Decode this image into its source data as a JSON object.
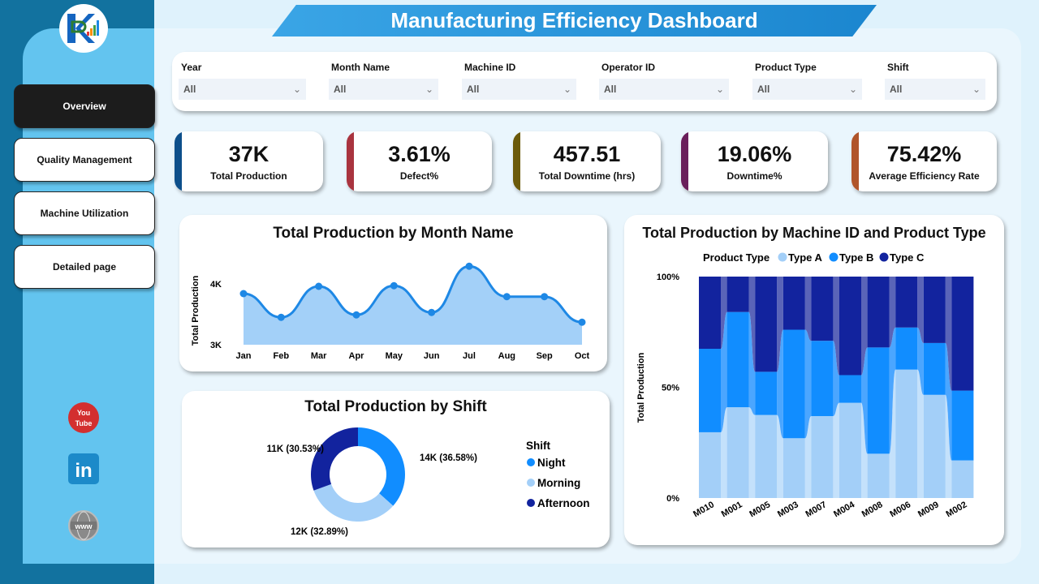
{
  "header": {
    "title": "Manufacturing Efficiency Dashboard",
    "logo_text": "KPI"
  },
  "nav": [
    {
      "label": "Overview",
      "active": true
    },
    {
      "label": "Quality Management"
    },
    {
      "label": "Machine Utilization"
    },
    {
      "label": "Detailed page"
    }
  ],
  "social": [
    {
      "icon": "youtube-icon",
      "label": "You Tube"
    },
    {
      "icon": "linkedin-icon",
      "label": "in"
    },
    {
      "icon": "globe-icon",
      "label": "www"
    }
  ],
  "filters": [
    {
      "label": "Year",
      "value": "All"
    },
    {
      "label": "Month Name",
      "value": "All"
    },
    {
      "label": "Machine ID",
      "value": "All"
    },
    {
      "label": "Operator ID",
      "value": "All"
    },
    {
      "label": "Product Type",
      "value": "All"
    },
    {
      "label": "Shift",
      "value": "All"
    }
  ],
  "kpis": [
    {
      "value": "37K",
      "label": "Total Production",
      "color": "#0d4f8b"
    },
    {
      "value": "3.61%",
      "label": "Defect%",
      "color": "#a9343f"
    },
    {
      "value": "457.51",
      "label": "Total Downtime (hrs)",
      "color": "#6b5a0a"
    },
    {
      "value": "19.06%",
      "label": "Downtime%",
      "color": "#6a1f5b"
    },
    {
      "value": "75.42%",
      "label": "Average Efficiency Rate",
      "color": "#b0552a"
    }
  ],
  "chart_data": [
    {
      "type": "area",
      "title": "Total Production by Month Name",
      "ylabel": "Total Production",
      "xlabel": "",
      "categories": [
        "Jan",
        "Feb",
        "Mar",
        "Apr",
        "May",
        "Jun",
        "Jul",
        "Aug",
        "Sep",
        "Oct"
      ],
      "values": [
        3840,
        3450,
        3960,
        3490,
        3970,
        3530,
        4290,
        3790,
        3790,
        3370
      ],
      "yticks": [
        "3K",
        "4K"
      ],
      "ylim": [
        3000,
        4000
      ],
      "color": "#1e88e5",
      "fill": "#a3d0f8"
    },
    {
      "type": "pie",
      "title": "Total Production by Shift",
      "legend_title": "Shift",
      "legend_position": "right",
      "slices": [
        {
          "name": "Night",
          "value": 36.58,
          "label": "14K (36.58%)",
          "color": "#118dff"
        },
        {
          "name": "Morning",
          "value": 32.89,
          "label": "12K (32.89%)",
          "color": "#a3cff8"
        },
        {
          "name": "Afternoon",
          "value": 30.53,
          "label": "11K (30.53%)",
          "color": "#12239e"
        }
      ]
    },
    {
      "type": "bar",
      "stacked": "100%",
      "title": "Total Production by Machine ID and Product Type",
      "ylabel": "Total Production",
      "legend_title": "Product Type",
      "legend_position": "top",
      "yticks": [
        "0%",
        "50%",
        "100%"
      ],
      "categories": [
        "M010",
        "M001",
        "M005",
        "M003",
        "M007",
        "M004",
        "M008",
        "M006",
        "M009",
        "M002"
      ],
      "series": [
        {
          "name": "Type A",
          "color": "#a3cff8",
          "values": [
            29.7,
            41,
            37.5,
            27,
            37,
            43,
            20,
            58,
            46.6,
            17
          ]
        },
        {
          "name": "Type B",
          "color": "#118dff",
          "values": [
            37.7,
            43,
            19.5,
            49,
            34,
            12.5,
            48,
            19,
            23.4,
            31.5
          ]
        },
        {
          "name": "Type C",
          "color": "#12239e",
          "values": [
            32.6,
            16,
            43,
            24,
            29,
            44.5,
            32,
            23,
            30,
            51.5
          ]
        }
      ]
    }
  ]
}
